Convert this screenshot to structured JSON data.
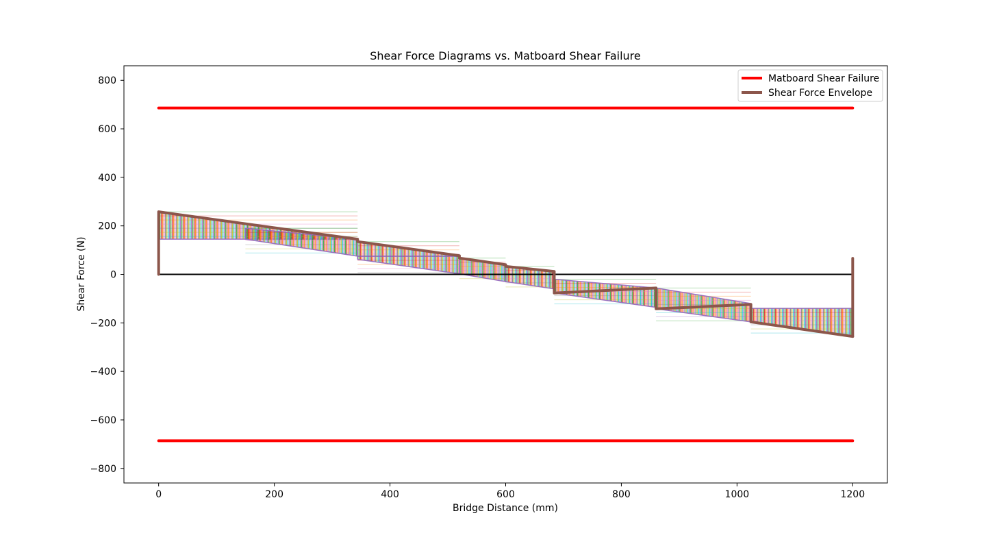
{
  "chart_data": {
    "type": "line",
    "title": "Shear Force Diagrams vs. Matboard Shear Failure",
    "xlabel": "Bridge Distance (mm)",
    "ylabel": "Shear Force (N)",
    "xlim": [
      -60,
      1260
    ],
    "ylim": [
      -860,
      860
    ],
    "xticks": [
      0,
      200,
      400,
      600,
      800,
      1000,
      1200
    ],
    "yticks": [
      800,
      600,
      400,
      200,
      0,
      -200,
      -400,
      -600,
      -800
    ],
    "xtick_labels": [
      "0",
      "200",
      "400",
      "600",
      "800",
      "1000",
      "1200"
    ],
    "ytick_labels": [
      "800",
      "600",
      "400",
      "200",
      "0",
      "−200",
      "−400",
      "−600",
      "−800"
    ],
    "grid": false,
    "legend_position": "top-right",
    "colors": {
      "failure": "#ff0000",
      "envelope": "#8c564b",
      "zero_line": "#000000",
      "train_cycle": [
        "#9467bd",
        "#2ca02c",
        "#d62728",
        "#ff7f0e",
        "#e377c2",
        "#7f7f7f",
        "#bcbd22",
        "#17becf"
      ]
    },
    "series": [
      {
        "name": "Matboard Shear Failure",
        "color": "#ff0000",
        "segments": [
          {
            "x": [
              0,
              1200
            ],
            "y": [
              686,
              686
            ]
          },
          {
            "x": [
              0,
              1200
            ],
            "y": [
              -686,
              -686
            ]
          }
        ]
      },
      {
        "name": "Shear Force Envelope",
        "color": "#8c564b",
        "segments": [
          {
            "x": [
              0,
              0,
              344,
              344,
              520,
              520,
              600,
              600,
              684,
              684,
              860,
              860,
              1024,
              1024,
              1200
            ],
            "y": [
              0,
              258,
              145,
              135,
              77,
              67,
              40,
              33,
              12,
              -77,
              -56,
              -142,
              -124,
              -196,
              -256
            ]
          },
          {
            "x": [
              1200,
              1200,
              1200
            ],
            "y": [
              -256,
              66,
              0
            ]
          }
        ]
      }
    ],
    "zero_line": {
      "x": [
        0,
        1200
      ],
      "y": [
        0,
        0
      ]
    },
    "load_case_bands": [
      {
        "x0": 0,
        "x1": 344,
        "top0": 258,
        "top1": 145,
        "bot0": 145,
        "bot1": 145
      },
      {
        "x0": 150,
        "x1": 344,
        "top0": 190,
        "top1": 145,
        "bot0": 145,
        "bot1": 75
      },
      {
        "x0": 344,
        "x1": 520,
        "top0": 135,
        "top1": 77,
        "bot0": 75,
        "bot1": 75
      },
      {
        "x0": 344,
        "x1": 520,
        "top0": 75,
        "top1": 75,
        "bot0": 62,
        "bot1": 2
      },
      {
        "x0": 520,
        "x1": 600,
        "top0": 67,
        "top1": 40,
        "bot0": 2,
        "bot1": -30
      },
      {
        "x0": 600,
        "x1": 684,
        "top0": 33,
        "top1": 12,
        "bot0": -30,
        "bot1": -60
      },
      {
        "x0": 684,
        "x1": 860,
        "top0": -20,
        "top1": -56,
        "bot0": -77,
        "bot1": -136
      },
      {
        "x0": 860,
        "x1": 1024,
        "top0": -56,
        "top1": -120,
        "bot0": -142,
        "bot1": -196
      },
      {
        "x0": 1024,
        "x1": 1200,
        "top0": -140,
        "top1": -140,
        "bot0": -196,
        "bot1": -256
      }
    ]
  }
}
